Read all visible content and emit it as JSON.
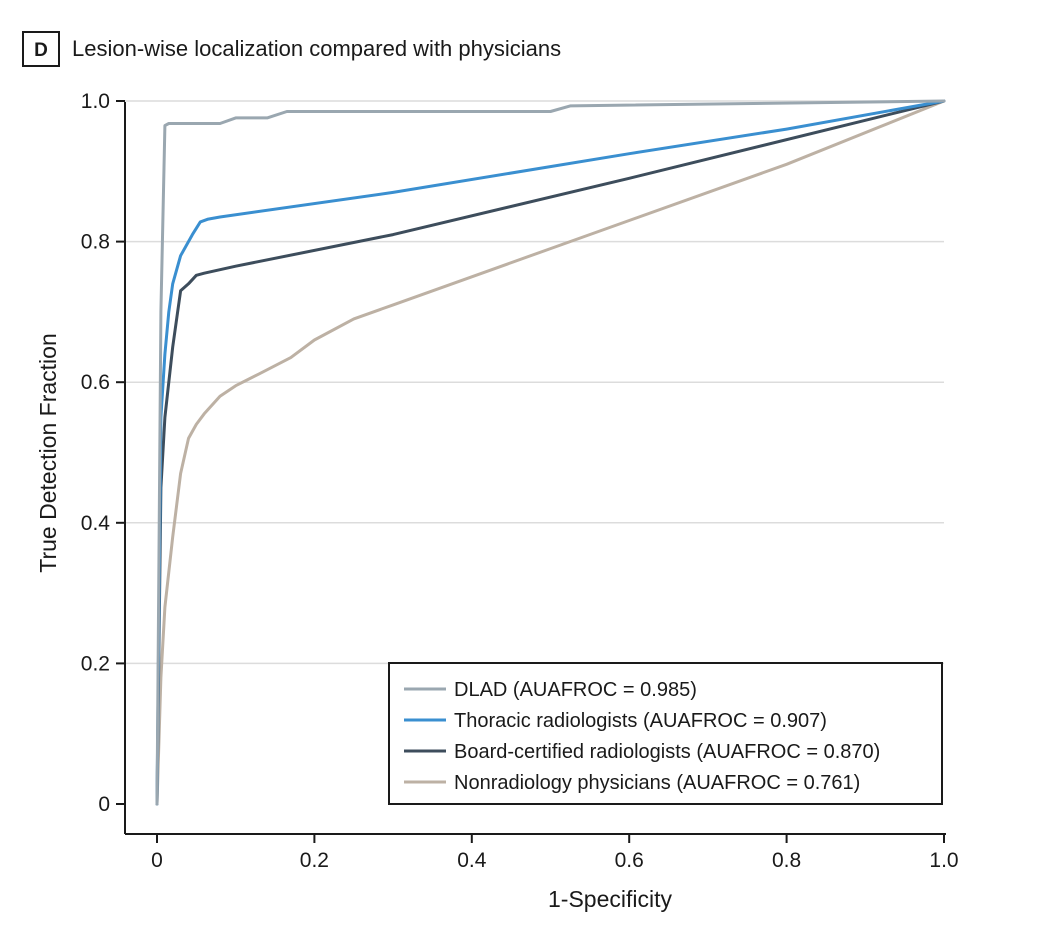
{
  "chart_data": {
    "type": "line",
    "panel_label": "D",
    "title": "Lesion-wise localization compared with physicians",
    "xlabel": "1-Specificity",
    "ylabel": "True Detection Fraction",
    "xlim": [
      0,
      1.0
    ],
    "ylim": [
      0,
      1.0
    ],
    "x_ticks": [
      "0",
      "0.2",
      "0.4",
      "0.6",
      "0.8",
      "1.0"
    ],
    "y_ticks": [
      "0",
      "0.2",
      "0.4",
      "0.6",
      "0.8",
      "1.0"
    ],
    "grid": "horizontal",
    "legend_position": "bottom-right",
    "series": [
      {
        "name": "DLAD (AUAFROC = 0.985)",
        "color": "#9aa7b0",
        "x": [
          0,
          0.005,
          0.01,
          0.015,
          0.08,
          0.1,
          0.14,
          0.165,
          0.5,
          0.525,
          1.0
        ],
        "y": [
          0,
          0.7,
          0.965,
          0.968,
          0.968,
          0.976,
          0.976,
          0.985,
          0.985,
          0.993,
          1.0
        ]
      },
      {
        "name": "Thoracic radiologists (AUAFROC = 0.907)",
        "color": "#3a8fd0",
        "x": [
          0,
          0.005,
          0.01,
          0.015,
          0.02,
          0.03,
          0.045,
          0.055,
          0.065,
          0.08,
          0.3,
          0.6,
          0.8,
          1.0
        ],
        "y": [
          0,
          0.55,
          0.64,
          0.7,
          0.74,
          0.78,
          0.81,
          0.828,
          0.832,
          0.835,
          0.87,
          0.925,
          0.96,
          1.0
        ]
      },
      {
        "name": "Board-certified radiologists (AUAFROC = 0.870)",
        "color": "#3d4d5c",
        "x": [
          0,
          0.005,
          0.01,
          0.015,
          0.02,
          0.03,
          0.04,
          0.05,
          0.06,
          0.1,
          0.3,
          0.6,
          1.0
        ],
        "y": [
          0,
          0.45,
          0.55,
          0.6,
          0.65,
          0.73,
          0.74,
          0.752,
          0.755,
          0.765,
          0.81,
          0.89,
          1.0
        ]
      },
      {
        "name": "Nonradiology physicians (AUAFROC = 0.761)",
        "color": "#bdb1a4",
        "x": [
          0,
          0.005,
          0.01,
          0.02,
          0.03,
          0.04,
          0.05,
          0.06,
          0.08,
          0.1,
          0.13,
          0.17,
          0.2,
          0.25,
          0.3,
          0.4,
          0.5,
          0.6,
          0.8,
          1.0
        ],
        "y": [
          0,
          0.18,
          0.28,
          0.38,
          0.47,
          0.52,
          0.54,
          0.555,
          0.58,
          0.595,
          0.612,
          0.635,
          0.66,
          0.69,
          0.71,
          0.75,
          0.79,
          0.83,
          0.91,
          1.0
        ]
      }
    ]
  }
}
